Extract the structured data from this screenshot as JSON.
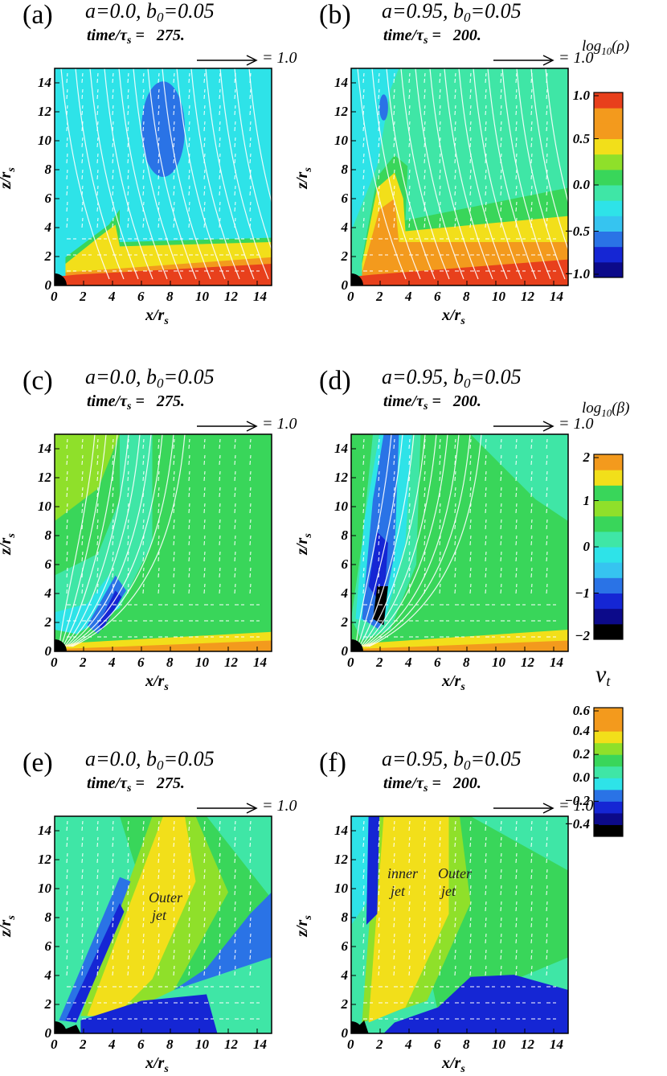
{
  "figure": {
    "vector_label": "= 1.0",
    "x_label": "x/r",
    "x_label_sub": "s",
    "y_label": "z/r",
    "y_label_sub": "s",
    "x_ticks": [
      "0",
      "2",
      "4",
      "6",
      "8",
      "10",
      "12",
      "14"
    ],
    "y_ticks": [
      "0",
      "2",
      "4",
      "6",
      "8",
      "10",
      "12",
      "14"
    ]
  },
  "panels": [
    {
      "letter": "(a)",
      "title": "a=0.0, b",
      "title_sub": "0",
      "title_tail": "=0.05",
      "time_text": "time/τ",
      "time_sub": "s",
      "time_val": " =   275.",
      "field": "rho_a"
    },
    {
      "letter": "(b)",
      "title": "a=0.95, b",
      "title_sub": "0",
      "title_tail": "=0.05",
      "time_text": "time/τ",
      "time_sub": "s",
      "time_val": " =   200.",
      "field": "rho_b"
    },
    {
      "letter": "(c)",
      "title": "a=0.0, b",
      "title_sub": "0",
      "title_tail": "=0.05",
      "time_text": "time/τ",
      "time_sub": "s",
      "time_val": " =   275.",
      "field": "beta_c"
    },
    {
      "letter": "(d)",
      "title": "a=0.95, b",
      "title_sub": "0",
      "title_tail": "=0.05",
      "time_text": "time/τ",
      "time_sub": "s",
      "time_val": " =   200.",
      "field": "beta_d"
    },
    {
      "letter": "(e)",
      "title": "a=0.0, b",
      "title_sub": "0",
      "title_tail": "=0.05",
      "time_text": "time/τ",
      "time_sub": "s",
      "time_val": " =   275.",
      "field": "vt_e"
    },
    {
      "letter": "(f)",
      "title": "a=0.95, b",
      "title_sub": "0",
      "title_tail": "=0.05",
      "time_text": "time/τ",
      "time_sub": "s",
      "time_val": " =   200.",
      "field": "vt_f"
    }
  ],
  "annotations": {
    "e_outer": [
      "Outer",
      "jet"
    ],
    "f_inner": [
      "inner",
      "jet"
    ],
    "f_outer": [
      "Outer",
      "jet"
    ]
  },
  "colorbars": [
    {
      "title_pre": "log",
      "title_sub": "10",
      "title_post": "(ρ)",
      "ticks": [
        "1.0",
        "0.5",
        "0.0",
        "−0.5",
        "−1.0"
      ],
      "range": [
        -1.0,
        1.0
      ]
    },
    {
      "title_pre": "log",
      "title_sub": "10",
      "title_post": "(β)",
      "ticks": [
        "2",
        "1",
        "0",
        "−1",
        "−2"
      ],
      "range": [
        -2,
        2
      ]
    },
    {
      "title_pre": "v",
      "title_sub": "t",
      "title_post": "",
      "ticks": [
        "0.6",
        "0.4",
        "0.2",
        "0.0",
        "−0.2",
        "−0.4"
      ],
      "range": [
        -0.5,
        0.6
      ]
    }
  ],
  "colors": {
    "red": "#e8401c",
    "orange": "#f39a1d",
    "yellow": "#f2df1a",
    "lime": "#8fe02a",
    "green": "#39d65a",
    "seafoam": "#3fe6a6",
    "cyan": "#2ee3e8",
    "lightblue": "#36c4f0",
    "blue": "#2a73e6",
    "darkblue": "#1526d4",
    "navy": "#0c0a8a",
    "black": "#000000"
  }
}
